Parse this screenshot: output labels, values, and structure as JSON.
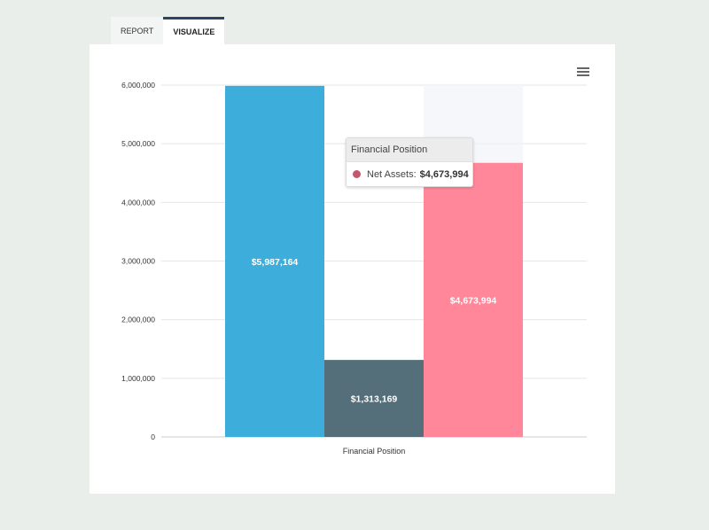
{
  "tabs": [
    {
      "label": "REPORT",
      "active": false
    },
    {
      "label": "VISUALIZE",
      "active": true
    }
  ],
  "menu": {
    "icon": "hamburger-menu-icon"
  },
  "chart_data": {
    "type": "bar",
    "categories": [
      "Financial Position"
    ],
    "xlabel": "Financial Position",
    "ylabel": "",
    "title": "",
    "ylim": [
      0,
      6000000
    ],
    "yticks": [
      0,
      1000000,
      2000000,
      3000000,
      4000000,
      5000000,
      6000000
    ],
    "ytick_labels": [
      "0",
      "1,000,000",
      "2,000,000",
      "3,000,000",
      "4,000,000",
      "5,000,000",
      "6,000,000"
    ],
    "grid": true,
    "legend": "none",
    "series": [
      {
        "name": "",
        "values": [
          5987164
        ],
        "color": "#3daedb",
        "label": "$5,987,164"
      },
      {
        "name": "",
        "values": [
          1313169
        ],
        "color": "#546e7a",
        "label": "$1,313,169"
      },
      {
        "name": "Net Assets",
        "values": [
          4673994
        ],
        "color": "#ff8799",
        "label": "$4,673,994"
      }
    ]
  },
  "tooltip": {
    "title": "Financial Position",
    "series_label": "Net Assets:",
    "value": "$4,673,994",
    "color": "#c5566b"
  }
}
